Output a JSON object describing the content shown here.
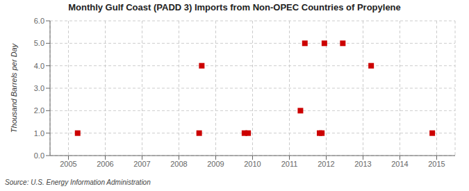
{
  "chart_data": {
    "type": "scatter",
    "title": "Monthly Gulf Coast (PADD 3) Imports from Non-OPEC Countries of Propylene",
    "ylabel": "Thousand Barrels per Day",
    "annotations": [
      "Source: U.S. Energy Information Administration"
    ],
    "x": [
      2005.25,
      2008.55,
      2008.62,
      2009.78,
      2009.88,
      2011.3,
      2011.42,
      2011.82,
      2011.88,
      2011.95,
      2012.45,
      2013.22,
      2014.88
    ],
    "values": [
      1.0,
      1.0,
      4.0,
      1.0,
      1.0,
      2.0,
      5.0,
      1.0,
      1.0,
      5.0,
      5.0,
      4.0,
      1.0
    ],
    "color": "#cc0000",
    "marker": "square",
    "xlim": [
      2004.5,
      2015.5
    ],
    "ylim": [
      0.0,
      6.0
    ],
    "xticks": [
      2005,
      2006,
      2007,
      2008,
      2009,
      2010,
      2011,
      2012,
      2013,
      2014,
      2015
    ],
    "yticks": [
      {
        "value": 0,
        "label": "0.0"
      },
      {
        "value": 1,
        "label": "1.0"
      },
      {
        "value": 2,
        "label": "2.0"
      },
      {
        "value": 3,
        "label": "3.0"
      },
      {
        "value": 4,
        "label": "4.0"
      },
      {
        "value": 5,
        "label": "5.0"
      },
      {
        "value": 6,
        "label": "6.0"
      }
    ],
    "grid": true
  }
}
